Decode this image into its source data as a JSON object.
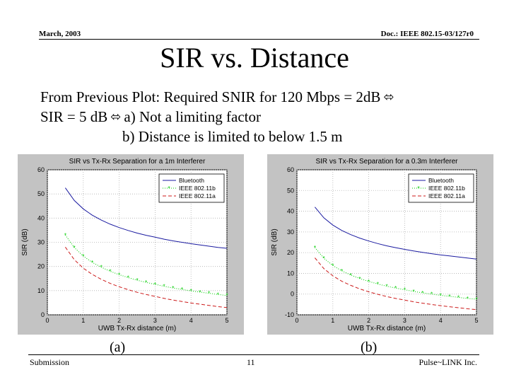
{
  "header": {
    "date": "March, 2003",
    "doc_id": "Doc.: IEEE 802.15-03/127r0"
  },
  "slide": {
    "title": "SIR vs. Distance",
    "line1": "From Previous Plot: Required SNIR for 120 Mbps = 2dB",
    "line2a": "SIR = 5 dB",
    "line2b": "a) Not a limiting factor",
    "line3": "b) Distance is limited to below 1.5 m",
    "arrow_icon": "left-right-arrow-icon"
  },
  "captions": {
    "a": "(a)",
    "b": "(b)"
  },
  "footer": {
    "left": "Submission",
    "page": "11",
    "right": "Pulse~LINK Inc."
  },
  "colors": {
    "bluetooth": "#1a1aa0",
    "ieee_802_11b": "#00cc00",
    "ieee_802_11a": "#cc1a1a",
    "plot_bg": "#c3c3c3",
    "grid": "#b0b0b0"
  },
  "chart_data": [
    {
      "type": "line",
      "title": "SIR vs Tx-Rx Separation for a 1m Interferer",
      "xlabel": "UWB Tx-Rx distance (m)",
      "ylabel": "SIR (dB)",
      "xlim": [
        0,
        5
      ],
      "ylim": [
        0,
        60
      ],
      "xticks": [
        "0",
        "1",
        "2",
        "3",
        "4",
        "5"
      ],
      "yticks": [
        "0",
        "10",
        "20",
        "30",
        "40",
        "50",
        "60"
      ],
      "grid": true,
      "legend_position": "top-right",
      "x": [
        0.5,
        0.75,
        1.0,
        1.25,
        1.5,
        1.75,
        2.0,
        2.25,
        2.5,
        2.75,
        3.0,
        3.25,
        3.5,
        3.75,
        4.0,
        4.25,
        4.5,
        4.75,
        5.0
      ],
      "series": [
        {
          "name": "Bluetooth",
          "style": "solid",
          "values": [
            52.5,
            47.3,
            43.8,
            41.2,
            39.2,
            37.5,
            36.1,
            34.9,
            33.8,
            32.9,
            32.1,
            31.3,
            30.6,
            30.0,
            29.4,
            28.9,
            28.4,
            27.9,
            27.5
          ]
        },
        {
          "name": "IEEE 802.11b",
          "style": "dotted-star",
          "values": [
            33.0,
            27.8,
            24.3,
            21.7,
            19.7,
            18.0,
            16.6,
            15.4,
            14.3,
            13.4,
            12.6,
            11.8,
            11.1,
            10.5,
            9.9,
            9.4,
            8.9,
            8.4,
            8.0
          ]
        },
        {
          "name": "IEEE 802.11a",
          "style": "dashed",
          "values": [
            28.0,
            22.8,
            19.3,
            16.7,
            14.7,
            13.0,
            11.6,
            10.4,
            9.3,
            8.4,
            7.6,
            6.8,
            6.1,
            5.5,
            4.9,
            4.4,
            3.9,
            3.4,
            3.0
          ]
        }
      ]
    },
    {
      "type": "line",
      "title": "SIR vs Tx-Rx Separation for a 0.3m Interferer",
      "xlabel": "UWB Tx-Rx distance (m)",
      "ylabel": "SIR (dB)",
      "xlim": [
        0,
        5
      ],
      "ylim": [
        -10,
        60
      ],
      "xticks": [
        "0",
        "1",
        "2",
        "3",
        "4",
        "5"
      ],
      "yticks": [
        "-10",
        "0",
        "10",
        "20",
        "30",
        "40",
        "50",
        "60"
      ],
      "grid": true,
      "legend_position": "top-right",
      "x": [
        0.5,
        0.75,
        1.0,
        1.25,
        1.5,
        1.75,
        2.0,
        2.25,
        2.5,
        2.75,
        3.0,
        3.25,
        3.5,
        3.75,
        4.0,
        4.25,
        4.5,
        4.75,
        5.0
      ],
      "series": [
        {
          "name": "Bluetooth",
          "style": "solid",
          "values": [
            42.0,
            36.8,
            33.3,
            30.7,
            28.7,
            27.0,
            25.6,
            24.4,
            23.3,
            22.4,
            21.6,
            20.8,
            20.1,
            19.5,
            18.9,
            18.4,
            17.9,
            17.4,
            16.9
          ]
        },
        {
          "name": "IEEE 802.11b",
          "style": "dotted-star",
          "values": [
            22.5,
            17.3,
            13.8,
            11.2,
            9.2,
            7.5,
            6.1,
            4.9,
            3.8,
            2.9,
            2.1,
            1.3,
            0.6,
            0.0,
            -0.6,
            -1.1,
            -1.6,
            -2.1,
            -2.5
          ]
        },
        {
          "name": "IEEE 802.11a",
          "style": "dashed",
          "values": [
            17.5,
            12.3,
            8.8,
            6.2,
            4.2,
            2.5,
            1.1,
            -0.1,
            -1.2,
            -2.1,
            -2.9,
            -3.7,
            -4.4,
            -5.0,
            -5.6,
            -6.1,
            -6.6,
            -7.1,
            -7.5
          ]
        }
      ]
    }
  ]
}
